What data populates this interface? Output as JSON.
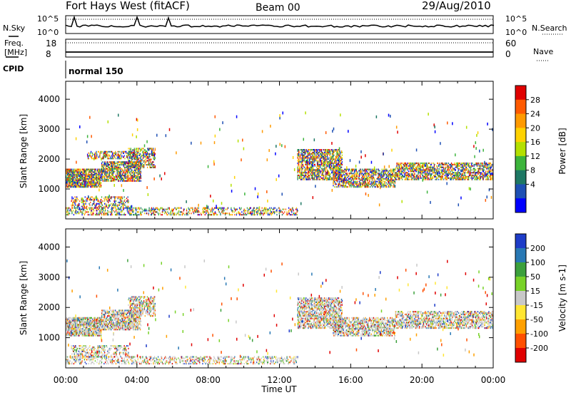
{
  "header": {
    "title": "Fort Hays West (fitACF)",
    "beam": "Beam 00",
    "date": "29/Aug/2010"
  },
  "status_panels": {
    "nsky_label": "N.Sky",
    "nsearch_label": "N.Search",
    "noise_ticks": [
      "10^5",
      "10^0"
    ],
    "freq_label_1": "Freq.",
    "freq_label_2": "[MHz]",
    "freq_ticks": [
      "18",
      "8"
    ],
    "nave_label": "Nave",
    "nave_ticks": [
      "60",
      "0"
    ],
    "cpid_label": "CPID",
    "cpid_value": "normal 150"
  },
  "chart_data": [
    {
      "type": "heatmap",
      "name": "power",
      "ylabel": "Slant Range [km]",
      "y_ticks": [
        1000,
        2000,
        3000,
        4000
      ],
      "ylim": [
        0,
        4600
      ],
      "xlim_hours": [
        0,
        24
      ],
      "colorbar": {
        "label": "Power [dB]",
        "ticks": [
          "28",
          "24",
          "20",
          "16",
          "12",
          "8",
          "4"
        ],
        "colors_top_to_bottom": [
          "#e00000",
          "#ff5a00",
          "#ff9a00",
          "#ffd200",
          "#b4e000",
          "#3cb43c",
          "#1e7864",
          "#1e50b4",
          "#0000ff"
        ]
      },
      "echo_regions": [
        {
          "t0": 0.0,
          "t1": 2.0,
          "r0": 1050,
          "r1": 1650,
          "intensity": 0.75
        },
        {
          "t0": 2.0,
          "t1": 4.2,
          "r0": 1250,
          "r1": 1900,
          "intensity": 0.6
        },
        {
          "t0": 3.5,
          "t1": 5.0,
          "r0": 1700,
          "r1": 2350,
          "intensity": 0.45
        },
        {
          "t0": 0.3,
          "t1": 3.5,
          "r0": 350,
          "r1": 750,
          "intensity": 0.35
        },
        {
          "t0": 1.2,
          "t1": 4.0,
          "r0": 2000,
          "r1": 2250,
          "intensity": 0.4
        },
        {
          "t0": 13.0,
          "t1": 15.5,
          "r0": 1300,
          "r1": 2300,
          "intensity": 0.55
        },
        {
          "t0": 15.0,
          "t1": 18.5,
          "r0": 1050,
          "r1": 1650,
          "intensity": 0.5
        },
        {
          "t0": 18.5,
          "t1": 24.0,
          "r0": 1300,
          "r1": 1850,
          "intensity": 0.5
        },
        {
          "t0": 0.0,
          "t1": 13.0,
          "r0": 120,
          "r1": 380,
          "intensity": 0.3
        }
      ]
    },
    {
      "type": "heatmap",
      "name": "velocity",
      "ylabel": "Slant Range [km]",
      "y_ticks": [
        1000,
        2000,
        3000,
        4000
      ],
      "ylim": [
        0,
        4600
      ],
      "xlim_hours": [
        0,
        24
      ],
      "xlabel": "Time UT",
      "x_ticks": [
        "00:00",
        "04:00",
        "08:00",
        "12:00",
        "16:00",
        "20:00",
        "00:00"
      ],
      "colorbar": {
        "label": "Velocity [m s-1]",
        "ticks": [
          "200",
          "100",
          "50",
          "15",
          "-15",
          "-50",
          "-100",
          "-200"
        ],
        "colors_top_to_bottom": [
          "#1e3cc8",
          "#2878b4",
          "#3ca03c",
          "#78d228",
          "#c8c8c8",
          "#ffe632",
          "#ffa000",
          "#ff5000",
          "#e00000"
        ]
      },
      "echo_regions": [
        {
          "t0": 0.0,
          "t1": 2.0,
          "r0": 1050,
          "r1": 1650,
          "intensity": 0.75
        },
        {
          "t0": 2.0,
          "t1": 4.2,
          "r0": 1250,
          "r1": 1900,
          "intensity": 0.6
        },
        {
          "t0": 3.5,
          "t1": 5.0,
          "r0": 1700,
          "r1": 2350,
          "intensity": 0.45
        },
        {
          "t0": 0.3,
          "t1": 3.5,
          "r0": 350,
          "r1": 750,
          "intensity": 0.35
        },
        {
          "t0": 13.0,
          "t1": 15.5,
          "r0": 1300,
          "r1": 2300,
          "intensity": 0.55
        },
        {
          "t0": 15.0,
          "t1": 18.5,
          "r0": 1050,
          "r1": 1650,
          "intensity": 0.5
        },
        {
          "t0": 18.5,
          "t1": 24.0,
          "r0": 1300,
          "r1": 1850,
          "intensity": 0.5
        },
        {
          "t0": 0.0,
          "t1": 13.0,
          "r0": 120,
          "r1": 380,
          "intensity": 0.3
        }
      ]
    }
  ]
}
